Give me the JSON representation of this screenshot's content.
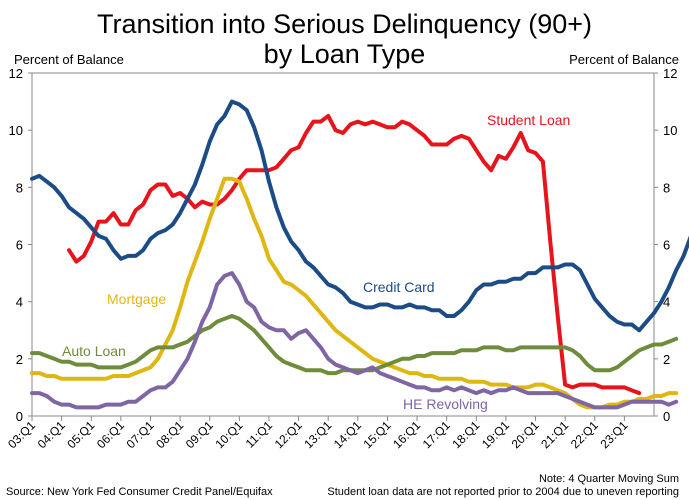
{
  "chart_data": {
    "type": "line",
    "title_line1": "Transition into Serious Delinquency (90+)",
    "title_line2": "by Loan Type",
    "ylabel_left": "Percent of Balance",
    "ylabel_right": "Percent of Balance",
    "ylim": [
      0,
      12
    ],
    "yticks": [
      "0",
      "2",
      "4",
      "6",
      "8",
      "10",
      "12"
    ],
    "xticks": [
      "03:Q1",
      "04:Q1",
      "05:Q1",
      "06:Q1",
      "07:Q1",
      "08:Q1",
      "09:Q1",
      "10:Q1",
      "11:Q1",
      "12:Q1",
      "13:Q1",
      "14:Q1",
      "15:Q1",
      "16:Q1",
      "17:Q1",
      "18:Q1",
      "19:Q1",
      "20:Q1",
      "21:Q1",
      "22:Q1",
      "23:Q1"
    ],
    "x_start": "2003:Q1",
    "grid": false,
    "series": [
      {
        "name": "Student Loan",
        "color": "#e8141c",
        "start": "2004:Q2",
        "values": [
          5.8,
          5.4,
          5.6,
          6.1,
          6.8,
          6.8,
          7.1,
          6.7,
          6.7,
          7.2,
          7.4,
          7.9,
          8.1,
          8.1,
          7.7,
          7.8,
          7.6,
          7.3,
          7.5,
          7.4,
          7.4,
          7.6,
          7.9,
          8.3,
          8.6,
          8.6,
          8.6,
          8.6,
          8.7,
          9.0,
          9.3,
          9.4,
          9.9,
          10.3,
          10.3,
          10.5,
          10.0,
          9.9,
          10.2,
          10.3,
          10.2,
          10.3,
          10.2,
          10.1,
          10.1,
          10.3,
          10.2,
          10.0,
          9.8,
          9.5,
          9.5,
          9.5,
          9.7,
          9.8,
          9.7,
          9.3,
          8.9,
          8.6,
          9.1,
          9.0,
          9.4,
          9.9,
          9.3,
          9.2,
          8.9,
          6.1,
          3.5,
          1.1,
          1.0,
          1.1,
          1.1,
          1.1,
          1.0,
          1.0,
          1.0,
          1.0,
          0.9,
          0.8
        ]
      },
      {
        "name": "Credit Card",
        "color": "#1c4c86",
        "start": "2003:Q1",
        "values": [
          8.3,
          8.4,
          8.2,
          8.0,
          7.7,
          7.3,
          7.1,
          6.9,
          6.6,
          6.3,
          6.2,
          5.8,
          5.5,
          5.6,
          5.6,
          5.8,
          6.2,
          6.4,
          6.5,
          6.7,
          7.1,
          7.6,
          8.1,
          8.8,
          9.6,
          10.2,
          10.5,
          11.0,
          10.9,
          10.7,
          10.1,
          9.3,
          8.2,
          7.3,
          6.6,
          6.1,
          5.8,
          5.4,
          5.2,
          4.9,
          4.6,
          4.5,
          4.3,
          4.0,
          3.9,
          3.8,
          3.8,
          3.9,
          3.9,
          3.8,
          3.8,
          3.9,
          3.8,
          3.8,
          3.7,
          3.7,
          3.5,
          3.5,
          3.7,
          4.0,
          4.4,
          4.6,
          4.6,
          4.7,
          4.7,
          4.8,
          4.8,
          5.0,
          5.0,
          5.2,
          5.2,
          5.2,
          5.3,
          5.3,
          5.1,
          4.6,
          4.1,
          3.8,
          3.5,
          3.3,
          3.2,
          3.2,
          3.0,
          3.3,
          3.6,
          4.0,
          4.5,
          5.1,
          5.6,
          6.3
        ]
      },
      {
        "name": "Mortgage",
        "color": "#dfb712",
        "start": "2003:Q1",
        "values": [
          1.5,
          1.5,
          1.4,
          1.4,
          1.3,
          1.3,
          1.3,
          1.3,
          1.3,
          1.3,
          1.3,
          1.4,
          1.4,
          1.4,
          1.5,
          1.6,
          1.7,
          2.0,
          2.5,
          3.0,
          3.8,
          4.7,
          5.4,
          6.1,
          6.9,
          7.6,
          8.3,
          8.3,
          8.2,
          7.6,
          6.9,
          6.3,
          5.5,
          5.1,
          4.7,
          4.6,
          4.4,
          4.2,
          3.9,
          3.6,
          3.3,
          3.0,
          2.8,
          2.6,
          2.4,
          2.2,
          2.0,
          1.9,
          1.8,
          1.7,
          1.6,
          1.5,
          1.5,
          1.4,
          1.4,
          1.3,
          1.3,
          1.3,
          1.3,
          1.2,
          1.2,
          1.2,
          1.1,
          1.1,
          1.1,
          1.0,
          1.0,
          1.0,
          1.1,
          1.1,
          1.0,
          0.9,
          0.8,
          0.6,
          0.4,
          0.3,
          0.3,
          0.3,
          0.4,
          0.4,
          0.5,
          0.5,
          0.6,
          0.6,
          0.7,
          0.7,
          0.8,
          0.8
        ]
      },
      {
        "name": "Auto Loan",
        "color": "#6e8c3c",
        "start": "2003:Q1",
        "values": [
          2.2,
          2.2,
          2.1,
          2.0,
          1.9,
          1.9,
          1.8,
          1.8,
          1.8,
          1.7,
          1.7,
          1.7,
          1.7,
          1.8,
          1.9,
          2.1,
          2.3,
          2.4,
          2.4,
          2.4,
          2.5,
          2.6,
          2.8,
          3.0,
          3.1,
          3.3,
          3.4,
          3.5,
          3.4,
          3.2,
          3.0,
          2.7,
          2.4,
          2.1,
          1.9,
          1.8,
          1.7,
          1.6,
          1.6,
          1.6,
          1.5,
          1.5,
          1.6,
          1.6,
          1.6,
          1.6,
          1.6,
          1.7,
          1.8,
          1.9,
          2.0,
          2.0,
          2.1,
          2.1,
          2.2,
          2.2,
          2.2,
          2.2,
          2.3,
          2.3,
          2.3,
          2.4,
          2.4,
          2.4,
          2.3,
          2.3,
          2.4,
          2.4,
          2.4,
          2.4,
          2.4,
          2.4,
          2.4,
          2.3,
          2.1,
          1.8,
          1.6,
          1.6,
          1.6,
          1.7,
          1.9,
          2.1,
          2.3,
          2.4,
          2.5,
          2.5,
          2.6,
          2.7
        ]
      },
      {
        "name": "HE Revolving",
        "color": "#7e65a4",
        "start": "2003:Q1",
        "values": [
          0.8,
          0.8,
          0.7,
          0.5,
          0.4,
          0.4,
          0.3,
          0.3,
          0.3,
          0.3,
          0.4,
          0.4,
          0.4,
          0.5,
          0.5,
          0.7,
          0.9,
          1.0,
          1.0,
          1.2,
          1.6,
          2.0,
          2.6,
          3.3,
          3.8,
          4.6,
          4.9,
          5.0,
          4.6,
          4.0,
          3.8,
          3.3,
          3.1,
          3.0,
          3.0,
          2.7,
          2.9,
          3.0,
          2.7,
          2.4,
          2.0,
          1.8,
          1.7,
          1.6,
          1.5,
          1.6,
          1.7,
          1.5,
          1.4,
          1.3,
          1.2,
          1.1,
          1.0,
          1.0,
          0.9,
          0.9,
          1.0,
          0.9,
          1.0,
          0.9,
          0.8,
          0.9,
          0.8,
          0.9,
          0.9,
          1.0,
          0.9,
          0.8,
          0.8,
          0.8,
          0.8,
          0.8,
          0.7,
          0.6,
          0.5,
          0.4,
          0.3,
          0.3,
          0.3,
          0.3,
          0.4,
          0.5,
          0.5,
          0.5,
          0.5,
          0.5,
          0.4,
          0.5
        ]
      }
    ],
    "series_labels": [
      {
        "series": "Student Loan",
        "text": "Student Loan"
      },
      {
        "series": "Credit Card",
        "text": "Credit Card"
      },
      {
        "series": "Mortgage",
        "text": "Mortgage"
      },
      {
        "series": "Auto Loan",
        "text": "Auto Loan"
      },
      {
        "series": "HE Revolving",
        "text": "HE Revolving"
      }
    ]
  },
  "footer": {
    "source": "Source: New York Fed Consumer Credit Panel/Equifax",
    "note1": "Note: 4 Quarter Moving Sum",
    "note2": "Student loan data are not reported prior to 2004 due to uneven reporting"
  }
}
